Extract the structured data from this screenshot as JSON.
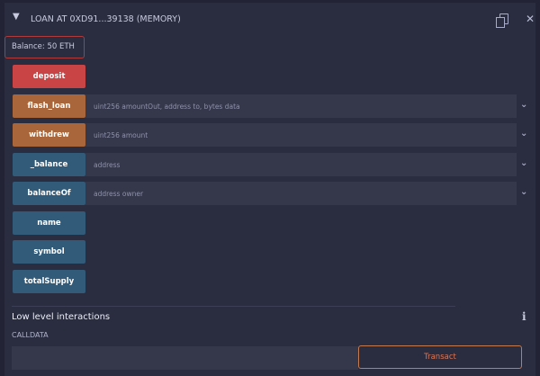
{
  "header": {
    "title": "LOAN AT 0XD91...39138 (MEMORY)"
  },
  "balance": "Balance: 50 ETH",
  "functions": [
    {
      "label": "deposit",
      "color": "#c84445",
      "params": null
    },
    {
      "label": "flash_loan",
      "color": "#a8663a",
      "params": "uint256 amountOut, address to, bytes data"
    },
    {
      "label": "withdrew",
      "color": "#a8663a",
      "params": "uint256 amount"
    },
    {
      "label": "_balance",
      "color": "#325a79",
      "params": "address"
    },
    {
      "label": "balanceOf",
      "color": "#325a79",
      "params": "address owner"
    },
    {
      "label": "name",
      "color": "#325a79",
      "params": null
    },
    {
      "label": "symbol",
      "color": "#325a79",
      "params": null
    },
    {
      "label": "totalSupply",
      "color": "#325a79",
      "params": null
    }
  ],
  "low_level": {
    "title": "Low level interactions",
    "calldata_label": "CALLDATA",
    "calldata_value": "",
    "transact_label": "Transact"
  }
}
